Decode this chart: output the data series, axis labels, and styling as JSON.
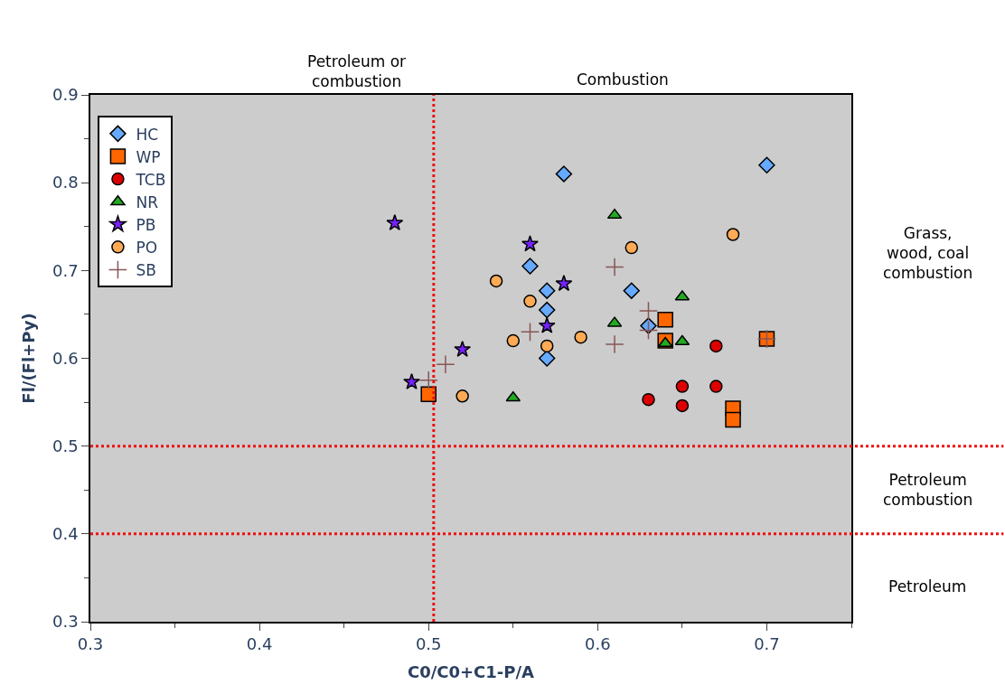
{
  "chart_data": {
    "type": "scatter",
    "xlabel": "C0/C0+C1-P/A",
    "ylabel": "Fl/(Fl+Py)",
    "xlim": [
      0.3,
      0.75
    ],
    "xticks": [
      0.3,
      0.4,
      0.5,
      0.6,
      0.7
    ],
    "ylim": [
      0.3,
      0.9
    ],
    "yticks": [
      0.3,
      0.4,
      0.5,
      0.6,
      0.7,
      0.8,
      0.9
    ],
    "grid": false,
    "legend": "top left",
    "series": [
      {
        "name": "HC",
        "color": "#66aaff",
        "marker": "diamond",
        "x": [
          0.58,
          0.7,
          0.56,
          0.57,
          0.57,
          0.57,
          0.62,
          0.63
        ],
        "values": [
          0.81,
          0.82,
          0.705,
          0.677,
          0.655,
          0.6,
          0.677,
          0.637
        ]
      },
      {
        "name": "WP",
        "color": "#ff6600",
        "marker": "square",
        "x": [
          0.64,
          0.64,
          0.7,
          0.68,
          0.68,
          0.5
        ],
        "values": [
          0.644,
          0.62,
          0.622,
          0.543,
          0.53,
          0.559
        ]
      },
      {
        "name": "TCB",
        "color": "#dd0000",
        "marker": "circle",
        "x": [
          0.67,
          0.65,
          0.67,
          0.63,
          0.65
        ],
        "values": [
          0.614,
          0.568,
          0.568,
          0.553,
          0.546
        ]
      },
      {
        "name": "NR",
        "color": "#22aa22",
        "marker": "triangle",
        "x": [
          0.61,
          0.65,
          0.61,
          0.64,
          0.65,
          0.55
        ],
        "values": [
          0.763,
          0.67,
          0.64,
          0.617,
          0.619,
          0.555
        ]
      },
      {
        "name": "PB",
        "color": "#7722ff",
        "marker": "star",
        "x": [
          0.48,
          0.56,
          0.58,
          0.57,
          0.52,
          0.49
        ],
        "values": [
          0.754,
          0.73,
          0.685,
          0.637,
          0.61,
          0.573
        ]
      },
      {
        "name": "PO",
        "color": "#ffaa55",
        "marker": "circle",
        "x": [
          0.54,
          0.56,
          0.55,
          0.57,
          0.59,
          0.52,
          0.62,
          0.68
        ],
        "values": [
          0.688,
          0.665,
          0.62,
          0.614,
          0.624,
          0.557,
          0.726,
          0.741
        ]
      },
      {
        "name": "SB",
        "color": "#885555",
        "marker": "cross",
        "x": [
          0.5,
          0.51,
          0.56,
          0.61,
          0.61,
          0.63,
          0.63,
          0.7
        ],
        "values": [
          0.575,
          0.593,
          0.63,
          0.704,
          0.616,
          0.654,
          0.632,
          0.622
        ]
      }
    ],
    "ref_lines": [
      {
        "axis": "x",
        "value": 0.503,
        "color": "#ee1111",
        "line_style": "dotted"
      },
      {
        "axis": "y",
        "value": 0.5,
        "color": "#ee1111",
        "line_style": "dotted"
      },
      {
        "axis": "y",
        "value": 0.4,
        "color": "#ee1111",
        "line_style": "dotted"
      }
    ],
    "annotations": [
      "Petroleum or combustion",
      "Combustion",
      "Grass, wood, coal combustion",
      "Petroleum combustion",
      "Petroleum"
    ]
  }
}
